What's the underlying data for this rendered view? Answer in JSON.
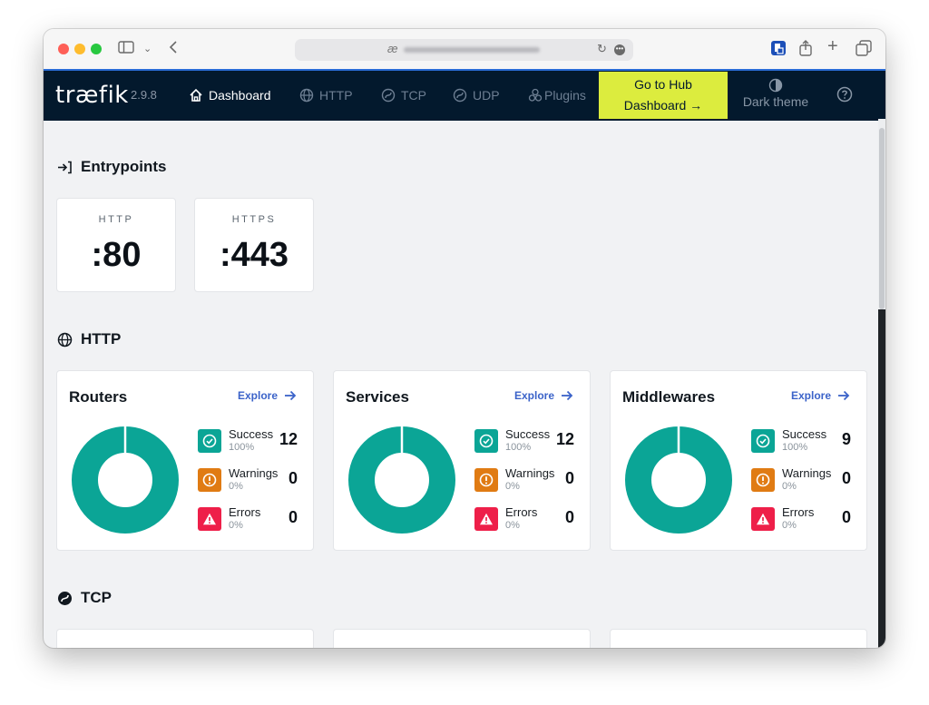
{
  "browser": {
    "address_icon": "æ",
    "controls": [
      "sidebar-toggle-icon",
      "chevron-down-icon",
      "back-icon",
      "reload-icon",
      "more-icon",
      "extension-icon",
      "share-icon",
      "new-tab-icon",
      "tabs-overview-icon"
    ]
  },
  "navbar": {
    "logo": "træfik",
    "version": "2.9.8",
    "items": [
      {
        "label": "Dashboard",
        "icon": "home-icon",
        "active": true
      },
      {
        "label": "HTTP",
        "icon": "globe-icon",
        "active": false
      },
      {
        "label": "TCP",
        "icon": "tcp-icon",
        "active": false
      },
      {
        "label": "UDP",
        "icon": "udp-icon",
        "active": false
      },
      {
        "label": "Plugins",
        "icon": "plugins-icon",
        "active": false
      }
    ],
    "hub_line1": "Go to Hub",
    "hub_line2": "Dashboard →",
    "dark_theme": "Dark theme",
    "help_icon": "help-icon",
    "accent_color": "#dcec3e",
    "background_color": "#03192d"
  },
  "sections": {
    "entrypoints": "Entrypoints",
    "http": "HTTP",
    "tcp": "TCP"
  },
  "entrypoints": [
    {
      "name": "HTTP",
      "port": ":80"
    },
    {
      "name": "HTTPS",
      "port": ":443"
    }
  ],
  "http_cards": [
    {
      "title": "Routers",
      "explore": "Explore",
      "success": {
        "label": "Success",
        "pct": "100%",
        "count": "12"
      },
      "warnings": {
        "label": "Warnings",
        "pct": "0%",
        "count": "0"
      },
      "errors": {
        "label": "Errors",
        "pct": "0%",
        "count": "0"
      }
    },
    {
      "title": "Services",
      "explore": "Explore",
      "success": {
        "label": "Success",
        "pct": "100%",
        "count": "12"
      },
      "warnings": {
        "label": "Warnings",
        "pct": "0%",
        "count": "0"
      },
      "errors": {
        "label": "Errors",
        "pct": "0%",
        "count": "0"
      }
    },
    {
      "title": "Middlewares",
      "explore": "Explore",
      "success": {
        "label": "Success",
        "pct": "100%",
        "count": "9"
      },
      "warnings": {
        "label": "Warnings",
        "pct": "0%",
        "count": "0"
      },
      "errors": {
        "label": "Errors",
        "pct": "0%",
        "count": "0"
      }
    }
  ],
  "colors": {
    "success": "#0ba596",
    "warning": "#e07b13",
    "error": "#ee1f49",
    "link": "#3b63c9"
  }
}
